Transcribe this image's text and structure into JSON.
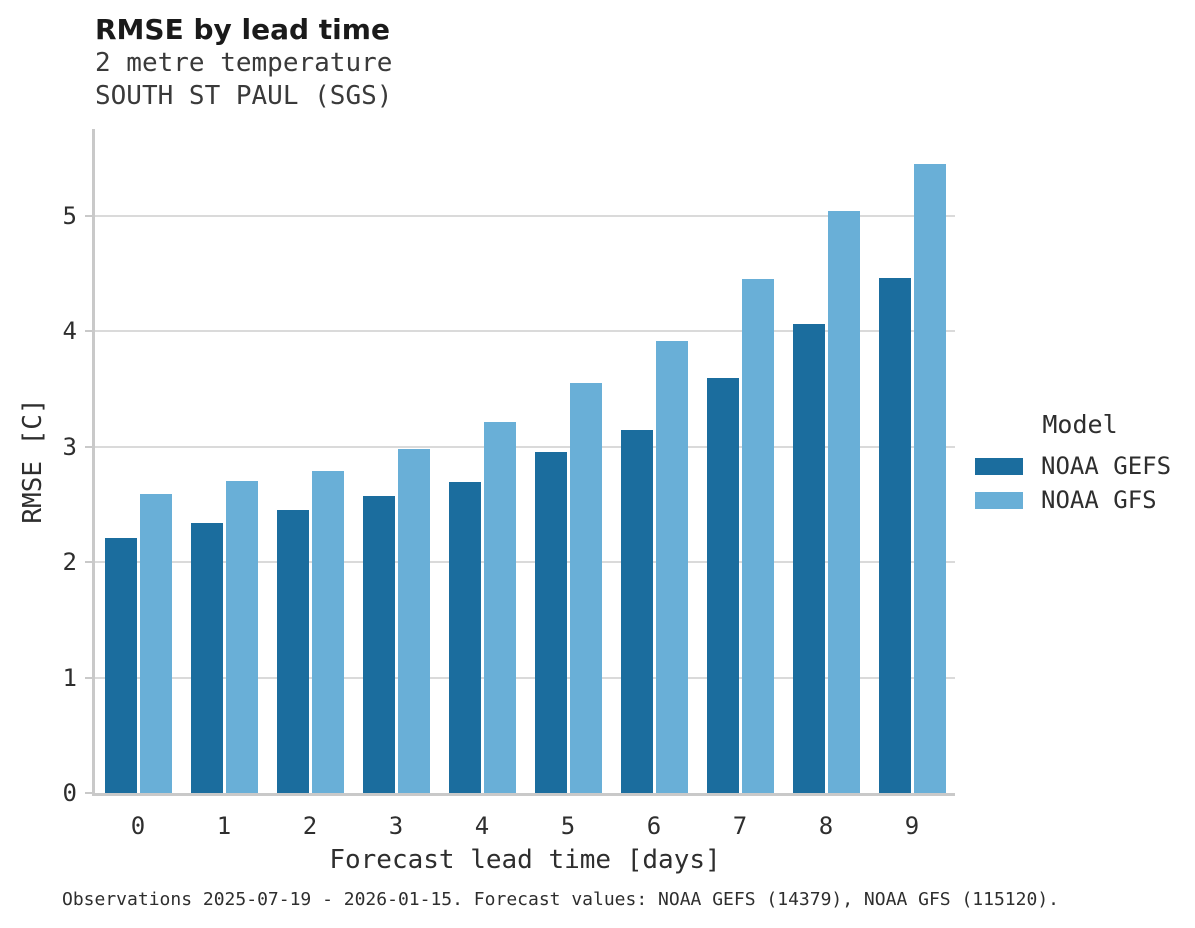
{
  "chart_data": {
    "type": "bar",
    "title": "RMSE by lead time",
    "subtitle": "2 metre temperature",
    "subtitle2": "SOUTH ST PAUL (SGS)",
    "xlabel": "Forecast lead time [days]",
    "ylabel": "RMSE [C]",
    "categories": [
      "0",
      "1",
      "2",
      "3",
      "4",
      "5",
      "6",
      "7",
      "8",
      "9"
    ],
    "series": [
      {
        "name": "NOAA GEFS",
        "color": "#1b6d9e",
        "values": [
          2.21,
          2.34,
          2.45,
          2.57,
          2.69,
          2.95,
          3.14,
          3.59,
          4.06,
          4.46
        ]
      },
      {
        "name": "NOAA GFS",
        "color": "#69afd7",
        "values": [
          2.59,
          2.7,
          2.79,
          2.98,
          3.21,
          3.55,
          3.91,
          4.45,
          5.04,
          5.45
        ]
      }
    ],
    "ylim": [
      0,
      5.75
    ],
    "yticks": [
      0,
      1,
      2,
      3,
      4,
      5
    ],
    "grid": true,
    "legend": {
      "title": "Model",
      "position": "right"
    }
  },
  "footer": {
    "text": "Observations 2025-07-19 - 2026-01-15. Forecast values: NOAA GEFS (14379), NOAA GFS (115120)."
  },
  "colors": {
    "grid": "#dadada",
    "spine": "#c9c9c9",
    "title_text": "#1a1a1a",
    "body_text": "#2e2e2e"
  }
}
